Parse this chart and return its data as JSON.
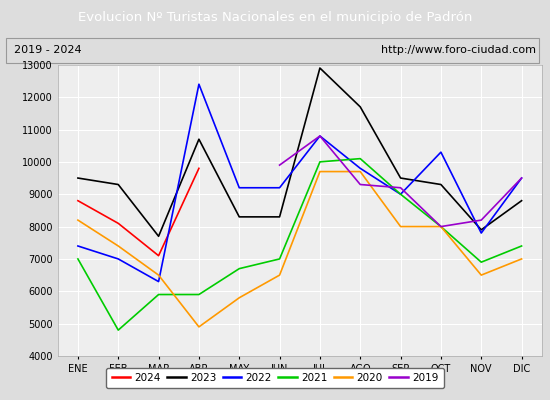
{
  "title": "Evolucion Nº Turistas Nacionales en el municipio de Padrón",
  "subtitle_left": "2019 - 2024",
  "subtitle_right": "http://www.foro-ciudad.com",
  "months": [
    "ENE",
    "FEB",
    "MAR",
    "ABR",
    "MAY",
    "JUN",
    "JUL",
    "AGO",
    "SEP",
    "OCT",
    "NOV",
    "DIC"
  ],
  "ylim": [
    4000,
    13000
  ],
  "yticks": [
    4000,
    5000,
    6000,
    7000,
    8000,
    9000,
    10000,
    11000,
    12000,
    13000
  ],
  "series": {
    "2024": {
      "color": "#ff0000",
      "data": [
        8800,
        8100,
        7100,
        9800,
        null,
        null,
        null,
        null,
        null,
        null,
        null,
        null
      ]
    },
    "2023": {
      "color": "#000000",
      "data": [
        9500,
        9300,
        7700,
        10700,
        8300,
        8300,
        12900,
        11700,
        9500,
        9300,
        7900,
        8800
      ]
    },
    "2022": {
      "color": "#0000ff",
      "data": [
        7400,
        7000,
        6300,
        12400,
        9200,
        9200,
        10800,
        9800,
        9000,
        10300,
        7800,
        9500
      ]
    },
    "2021": {
      "color": "#00cc00",
      "data": [
        7000,
        4800,
        5900,
        5900,
        6700,
        7000,
        10000,
        10100,
        9000,
        8000,
        6900,
        7400
      ]
    },
    "2020": {
      "color": "#ff9900",
      "data": [
        8200,
        7400,
        6500,
        4900,
        5800,
        6500,
        9700,
        9700,
        8000,
        8000,
        6500,
        7000
      ]
    },
    "2019": {
      "color": "#9900cc",
      "data": [
        null,
        null,
        null,
        null,
        null,
        9900,
        10800,
        9300,
        9200,
        8000,
        8200,
        9500
      ]
    }
  },
  "title_bg_color": "#4472c4",
  "title_text_color": "#ffffff",
  "plot_bg_color": "#eeeeee",
  "grid_color": "#ffffff",
  "fig_bg_color": "#dddddd",
  "legend_years": [
    "2024",
    "2023",
    "2022",
    "2021",
    "2020",
    "2019"
  ]
}
